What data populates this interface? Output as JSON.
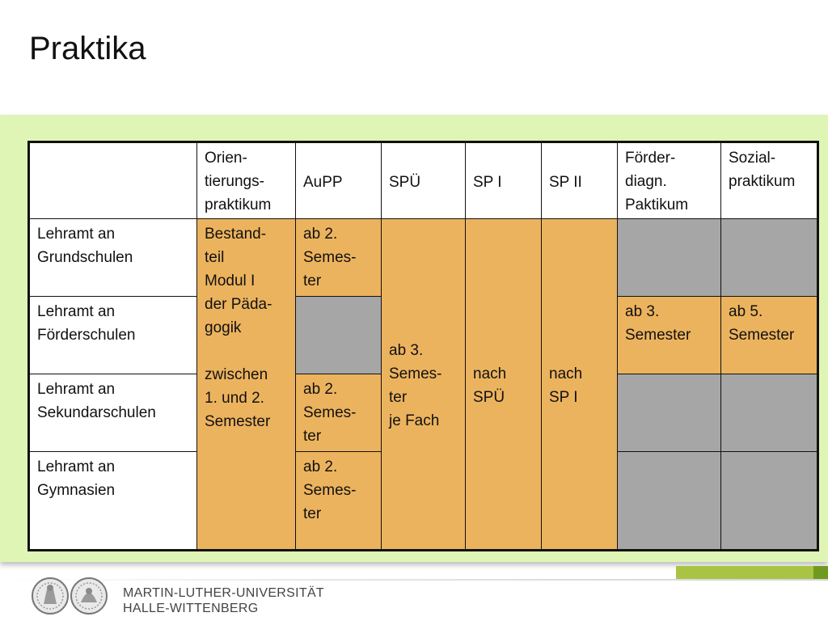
{
  "slide": {
    "title": "Praktika"
  },
  "table": {
    "headers": [
      "",
      "Orien-\ntierungs-\npraktikum",
      "AuPP",
      "SPÜ",
      "SP I",
      "SP II",
      "Förder-\ndiagn.\nPaktikum",
      "Sozial-\npraktikum"
    ],
    "rows": [
      "Lehramt an\nGrundschulen",
      "Lehramt an\nFörderschulen",
      "Lehramt an\nSekundarschulen",
      "Lehramt an\nGymnasien"
    ],
    "orientierung": "Bestand-\nteil\nModul I\nder Päda-\ngogik\n\nzwischen\n1. und 2.\nSemester",
    "aupp": [
      "ab 2.\nSemes-\nter",
      "",
      "ab 2.\nSemes-\nter",
      "ab 2.\nSemes-\nter"
    ],
    "spue": "ab 3.\nSemes-\nter\nje Fach",
    "sp1": "nach\nSPÜ",
    "sp2": "nach\nSP I",
    "foerder_foerderschulen": "ab 3.\nSemester",
    "sozial_foerderschulen": "ab 5.\nSemester"
  },
  "colors": {
    "background_panel": "#dff5b5",
    "applicable": "#ecb35e",
    "not_applicable": "#a6a6a6",
    "footer_accent": "#a9c444"
  },
  "footer": {
    "university_line1": "MARTIN-LUTHER-UNIVERSITÄT",
    "university_line2": "HALLE-WITTENBERG",
    "seal_icons": [
      "university-seal-icon",
      "university-seal-icon"
    ]
  }
}
